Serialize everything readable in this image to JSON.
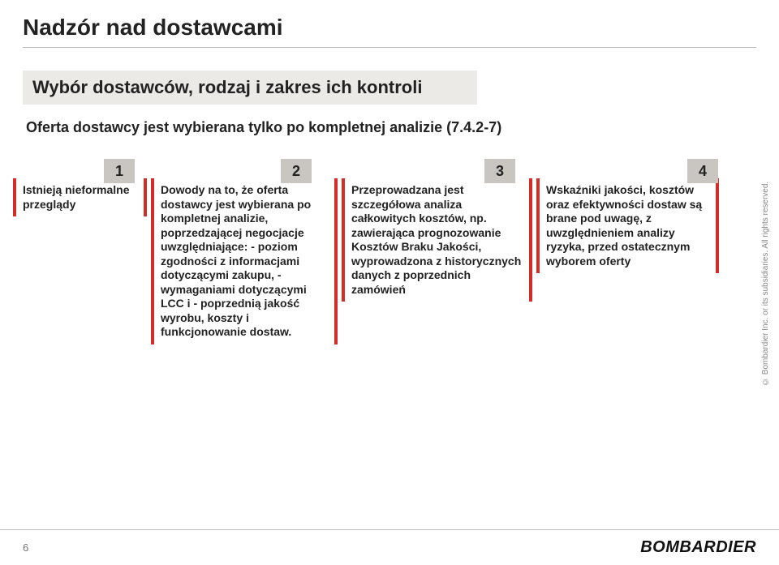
{
  "title": "Nadzór nad dostawcami",
  "subtitle": "Wybór dostawców, rodzaj i zakres ich kontroli",
  "intro": "Oferta dostawcy jest wybierana tylko po kompletnej analizie (7.4.2-7)",
  "columns": [
    {
      "number": "1",
      "text": "Istnieją nieformalne przeglądy"
    },
    {
      "number": "2",
      "text": "Dowody na to, że oferta dostawcy jest wybierana po kompletnej analizie, poprzedzającej negocjacje uwzględniające:\n- poziom zgodności z informacjami dotyczącymi zakupu,\n- wymaganiami dotyczącymi LCC i\n- poprzednią jakość wyrobu, koszty i funkcjonowanie dostaw."
    },
    {
      "number": "3",
      "text": "Przeprowadzana jest szczegółowa analiza całkowitych kosztów, np. zawierająca prognozowanie Kosztów Braku Jakości, wyprowadzona z historycznych danych z poprzednich zamówień"
    },
    {
      "number": "4",
      "text": "Wskaźniki jakości, kosztów oraz efektywności dostaw są brane pod uwagę, z uwzględnieniem analizy ryzyka, przed ostatecznym wyborem oferty"
    }
  ],
  "colors": {
    "accent": "#d32d27",
    "badge_bg": "#c9c6c1",
    "subtitle_bg": "#eceae7",
    "rule": "#bbbbbb",
    "text": "#222222",
    "muted": "#888888"
  },
  "copyright": "© Bombardier Inc. or its subsidiaries. All rights reserved.",
  "footer": {
    "page_number": "6",
    "brand": "BOMBARDIER"
  }
}
